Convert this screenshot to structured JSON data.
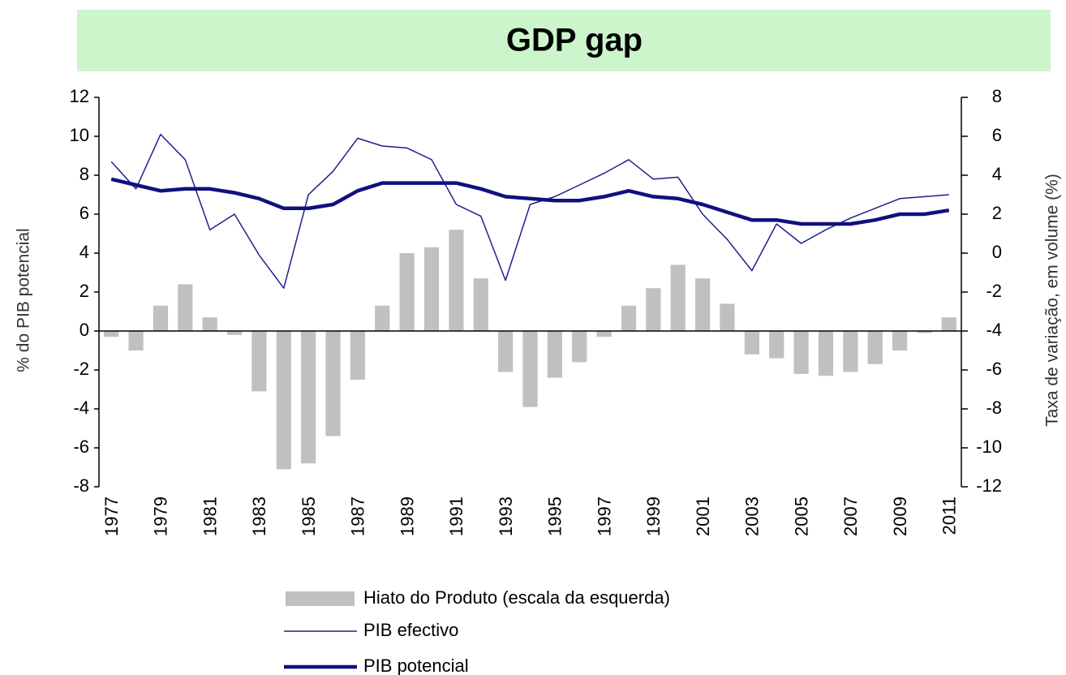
{
  "chart_data": {
    "type": "bar_line",
    "title": "GDP gap",
    "categories": [
      "1977",
      null,
      "1979",
      null,
      "1981",
      null,
      "1983",
      null,
      "1985",
      null,
      "1987",
      null,
      "1989",
      null,
      "1991",
      null,
      "1993",
      null,
      "1995",
      null,
      "1997",
      null,
      "1999",
      null,
      "2001",
      null,
      "2003",
      null,
      "2005",
      null,
      "2007",
      null,
      "2009",
      null,
      "2011"
    ],
    "series": [
      {
        "name": "Hiato do Produto (escala da esquerda)",
        "color": "#c0c0c0",
        "kind": "bar",
        "values": [
          -0.3,
          -1.0,
          1.3,
          2.4,
          0.7,
          -0.2,
          -3.1,
          -7.1,
          -6.8,
          -5.4,
          -2.5,
          1.3,
          4.0,
          4.3,
          5.2,
          2.7,
          -2.1,
          -3.9,
          -2.4,
          -1.6,
          -0.3,
          1.3,
          2.2,
          3.4,
          2.7,
          1.4,
          -1.2,
          -1.4,
          -2.2,
          -2.3,
          -2.1,
          -1.7,
          -1.0,
          -0.1,
          0.7
        ]
      },
      {
        "name": "PIB efectivo",
        "color": "#1f1f8f",
        "kind": "line",
        "width": 1.5,
        "axis": "y2",
        "values": [
          4.7,
          3.3,
          6.1,
          4.8,
          1.2,
          2.0,
          -0.1,
          -1.8,
          3.0,
          4.2,
          5.9,
          5.5,
          5.4,
          4.8,
          2.5,
          1.9,
          -1.4,
          2.5,
          2.9,
          3.5,
          4.1,
          4.8,
          3.8,
          3.9,
          2.0,
          0.7,
          -0.9,
          1.5,
          0.5,
          1.2,
          1.8,
          2.3,
          2.8,
          2.9,
          3.0
        ]
      },
      {
        "name": "PIB potencial",
        "color": "#101080",
        "kind": "line",
        "width": 4.5,
        "axis": "y2",
        "values": [
          3.8,
          3.5,
          3.2,
          3.3,
          3.3,
          3.1,
          2.8,
          2.3,
          2.3,
          2.5,
          3.2,
          3.6,
          3.6,
          3.6,
          3.6,
          3.3,
          2.9,
          2.8,
          2.7,
          2.7,
          2.9,
          3.2,
          2.9,
          2.8,
          2.5,
          2.1,
          1.7,
          1.7,
          1.5,
          1.5,
          1.5,
          1.7,
          2.0,
          2.0,
          2.2
        ]
      }
    ],
    "y_label": "% do PIB potencial",
    "y2_label": "Taxa de variação, em volume (%)",
    "ylim": [
      -8,
      12
    ],
    "yticks": [
      -8,
      -6,
      -4,
      -2,
      0,
      2,
      4,
      6,
      8,
      10,
      12
    ],
    "y2lim": [
      -12,
      8
    ],
    "y2ticks": [
      -12,
      -10,
      -8,
      -6,
      -4,
      -2,
      0,
      2,
      4,
      6,
      8
    ]
  }
}
